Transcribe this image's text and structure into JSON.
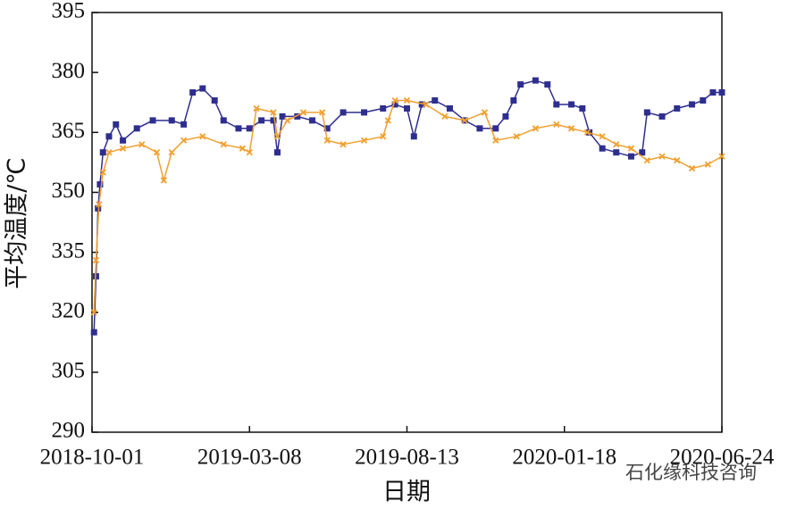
{
  "chart_data": {
    "type": "line",
    "x_label": "日期",
    "y_label": "平均温度/℃",
    "watermark": "石化缘科技咨询",
    "xlim": [
      "2018-10-01",
      "2020-06-24"
    ],
    "xticks": [
      "2018-10-01",
      "2019-03-08",
      "2019-08-13",
      "2020-01-18",
      "2020-06-24"
    ],
    "ylim": [
      290,
      395
    ],
    "yticks": [
      290,
      305,
      320,
      335,
      350,
      365,
      380,
      395
    ],
    "series": [
      {
        "color": "#2e2e8f",
        "marker": "square",
        "x": [
          "2018-10-03",
          "2018-10-05",
          "2018-10-07",
          "2018-10-09",
          "2018-10-12",
          "2018-10-18",
          "2018-10-25",
          "2018-11-01",
          "2018-11-15",
          "2018-12-01",
          "2018-12-20",
          "2019-01-01",
          "2019-01-10",
          "2019-01-20",
          "2019-02-01",
          "2019-02-10",
          "2019-02-25",
          "2019-03-08",
          "2019-03-20",
          "2019-04-01",
          "2019-04-05",
          "2019-04-10",
          "2019-04-25",
          "2019-05-10",
          "2019-05-25",
          "2019-06-10",
          "2019-07-01",
          "2019-07-20",
          "2019-08-01",
          "2019-08-13",
          "2019-08-20",
          "2019-08-28",
          "2019-09-10",
          "2019-09-25",
          "2019-10-10",
          "2019-10-25",
          "2019-11-10",
          "2019-11-20",
          "2019-11-28",
          "2019-12-05",
          "2019-12-20",
          "2020-01-01",
          "2020-01-10",
          "2020-01-25",
          "2020-02-05",
          "2020-02-12",
          "2020-02-25",
          "2020-03-10",
          "2020-03-25",
          "2020-04-05",
          "2020-04-10",
          "2020-04-25",
          "2020-05-10",
          "2020-05-25",
          "2020-06-05",
          "2020-06-15",
          "2020-06-24"
        ],
        "values": [
          315,
          329,
          346,
          352,
          360,
          364,
          367,
          363,
          366,
          368,
          368,
          367,
          375,
          376,
          373,
          368,
          366,
          366,
          368,
          368,
          360,
          369,
          369,
          368,
          366,
          370,
          370,
          371,
          372,
          371,
          364,
          372,
          373,
          371,
          368,
          366,
          366,
          369,
          373,
          377,
          378,
          377,
          372,
          372,
          371,
          365,
          361,
          360,
          359,
          360,
          370,
          369,
          371,
          372,
          373,
          375,
          375
        ]
      },
      {
        "color": "#f0a030",
        "marker": "cross",
        "x": [
          "2018-10-03",
          "2018-10-05",
          "2018-10-08",
          "2018-10-12",
          "2018-10-18",
          "2018-11-01",
          "2018-11-20",
          "2018-12-05",
          "2018-12-12",
          "2018-12-20",
          "2019-01-01",
          "2019-01-20",
          "2019-02-10",
          "2019-03-01",
          "2019-03-08",
          "2019-03-15",
          "2019-04-01",
          "2019-04-05",
          "2019-04-15",
          "2019-05-01",
          "2019-05-20",
          "2019-05-25",
          "2019-06-10",
          "2019-07-01",
          "2019-07-20",
          "2019-07-25",
          "2019-08-01",
          "2019-08-13",
          "2019-09-01",
          "2019-09-20",
          "2019-10-10",
          "2019-10-30",
          "2019-11-10",
          "2019-12-01",
          "2019-12-20",
          "2020-01-10",
          "2020-01-25",
          "2020-02-10",
          "2020-02-25",
          "2020-03-10",
          "2020-03-25",
          "2020-04-10",
          "2020-04-25",
          "2020-05-10",
          "2020-05-25",
          "2020-06-10",
          "2020-06-24"
        ],
        "values": [
          320,
          333,
          347,
          355,
          360,
          361,
          362,
          360,
          353,
          360,
          363,
          364,
          362,
          361,
          360,
          371,
          370,
          364,
          368,
          370,
          370,
          363,
          362,
          363,
          364,
          368,
          373,
          373,
          372,
          369,
          368,
          370,
          363,
          364,
          366,
          367,
          366,
          365,
          364,
          362,
          361,
          358,
          359,
          358,
          356,
          357,
          359
        ]
      }
    ]
  }
}
